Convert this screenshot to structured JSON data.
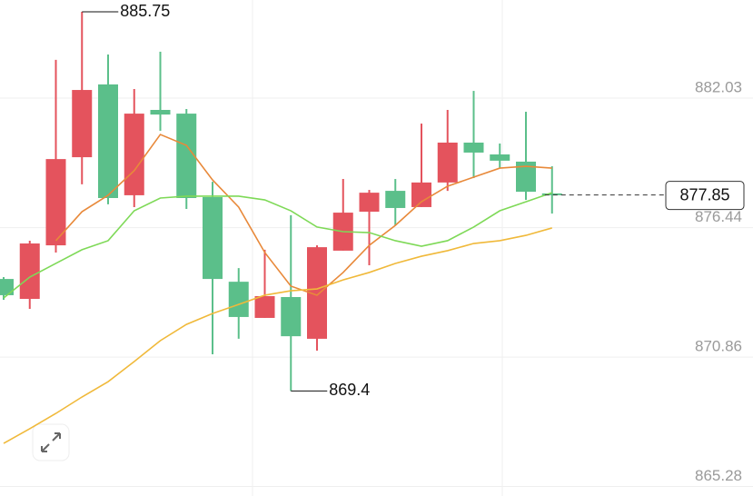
{
  "chart_data": {
    "type": "candlestick",
    "up_color": "#e4535d",
    "down_color": "#5bbf8a",
    "open": [
      874.23,
      873.37,
      875.68,
      879.48,
      882.62,
      877.84,
      881.52,
      881.36,
      877.76,
      874.11,
      872.55,
      873.45,
      871.65,
      875.45,
      877.13,
      878.03,
      877.33,
      878.39,
      880.11,
      879.6,
      879.29,
      877.92
    ],
    "high": [
      874.31,
      875.88,
      883.68,
      885.75,
      883.91,
      882.42,
      884.03,
      881.56,
      878.42,
      874.7,
      875.49,
      876.98,
      875.68,
      878.54,
      878.07,
      878.54,
      880.93,
      881.52,
      882.34,
      880.07,
      881.44,
      879.09
    ],
    "low": [
      873.33,
      872.94,
      875.37,
      878.31,
      877.45,
      877.33,
      880.62,
      877.25,
      870.98,
      871.65,
      872.55,
      869.4,
      871.14,
      875.45,
      874.82,
      876.54,
      877.33,
      878.03,
      878.58,
      879.01,
      877.64,
      877.05
    ],
    "close": [
      873.53,
      875.76,
      879.4,
      882.38,
      877.72,
      881.36,
      881.32,
      877.72,
      874.23,
      872.59,
      873.49,
      871.76,
      875.6,
      877.09,
      877.95,
      877.29,
      878.39,
      880.11,
      879.68,
      879.33,
      877.99,
      877.85
    ],
    "lines": [
      {
        "color": "#e8893a",
        "values": [
          null,
          null,
          875.88,
          877.13,
          877.84,
          878.9,
          880.46,
          879.99,
          878.5,
          877.33,
          875.37,
          873.92,
          873.53,
          874.51,
          875.68,
          876.54,
          877.56,
          878.23,
          878.62,
          879.01,
          879.09,
          879.01
        ]
      },
      {
        "color": "#7ed957",
        "values": [
          873.41,
          874.31,
          874.9,
          875.49,
          875.88,
          877.17,
          877.72,
          877.8,
          877.8,
          877.8,
          877.64,
          877.17,
          876.47,
          876.27,
          876.23,
          875.88,
          875.64,
          875.88,
          876.47,
          877.17,
          877.56,
          877.95
        ]
      },
      {
        "color": "#f0b93a",
        "values": [
          867.14,
          867.77,
          868.43,
          869.14,
          869.8,
          870.67,
          871.57,
          872.27,
          872.74,
          873.13,
          873.53,
          873.72,
          873.8,
          874.19,
          874.51,
          874.9,
          875.21,
          875.45,
          875.76,
          875.88,
          876.11,
          876.43
        ]
      }
    ],
    "ylim": [
      864.87,
      886.26
    ],
    "yticks": [
      865.28,
      870.86,
      876.44,
      882.03
    ],
    "grid": true
  }
}
